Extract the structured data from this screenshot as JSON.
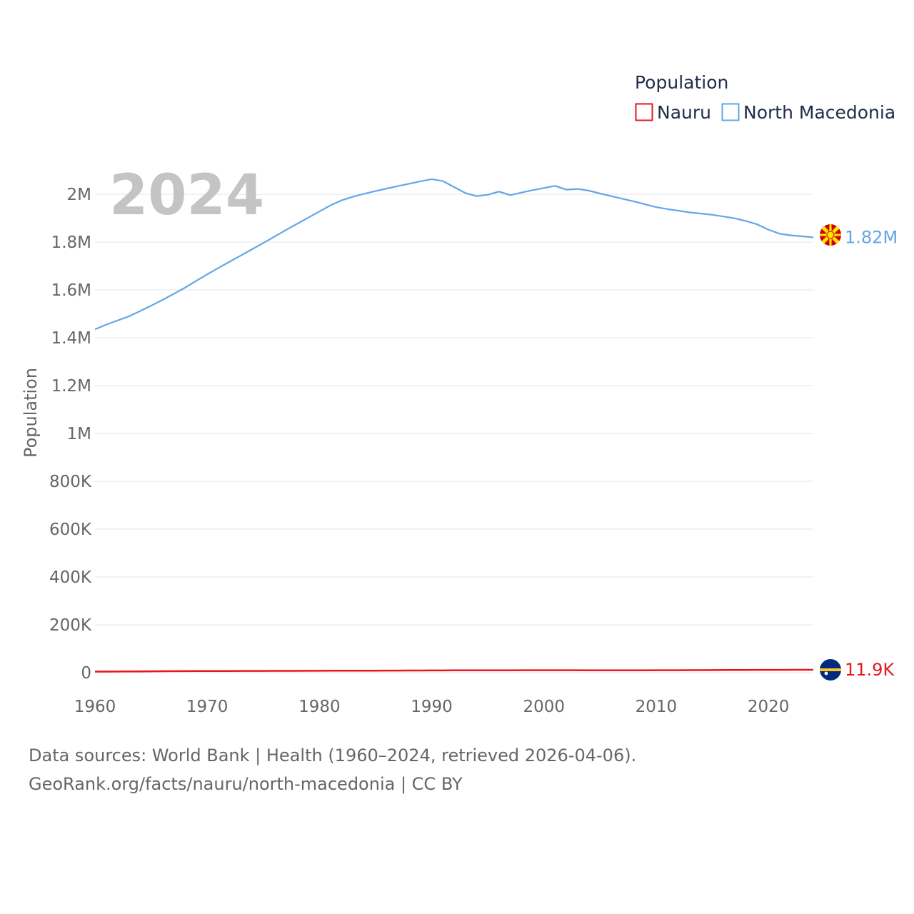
{
  "chart_data": {
    "type": "line",
    "x": [
      1960,
      1961,
      1962,
      1963,
      1964,
      1965,
      1966,
      1967,
      1968,
      1969,
      1970,
      1971,
      1972,
      1973,
      1974,
      1975,
      1976,
      1977,
      1978,
      1979,
      1980,
      1981,
      1982,
      1983,
      1984,
      1985,
      1986,
      1987,
      1988,
      1989,
      1990,
      1991,
      1992,
      1993,
      1994,
      1995,
      1996,
      1997,
      1998,
      1999,
      2000,
      2001,
      2002,
      2003,
      2004,
      2005,
      2006,
      2007,
      2008,
      2009,
      2010,
      2011,
      2012,
      2013,
      2014,
      2015,
      2016,
      2017,
      2018,
      2019,
      2020,
      2021,
      2022,
      2023,
      2024
    ],
    "series": [
      {
        "name": "Nauru",
        "color": "#e8161d",
        "end_label": "11.9K",
        "values": [
          4400,
          4600,
          4800,
          5000,
          5300,
          5600,
          5900,
          6200,
          6400,
          6600,
          6800,
          6900,
          7000,
          7100,
          7200,
          7300,
          7400,
          7500,
          7600,
          7700,
          7800,
          8000,
          8100,
          8200,
          8300,
          8500,
          8600,
          8800,
          8900,
          9100,
          9300,
          9400,
          9500,
          9700,
          9800,
          9800,
          9900,
          9900,
          10000,
          10000,
          10100,
          10100,
          10100,
          10000,
          9900,
          9900,
          9900,
          9800,
          9800,
          9900,
          10000,
          10100,
          10200,
          10300,
          10500,
          10800,
          11000,
          11200,
          11300,
          11600,
          11700,
          11700,
          11800,
          11900,
          11900
        ]
      },
      {
        "name": "North Macedonia",
        "color": "#63a6e6",
        "end_label": "1.82M",
        "values": [
          1435000,
          1455000,
          1472000,
          1489000,
          1511000,
          1534000,
          1558000,
          1583000,
          1609000,
          1637000,
          1665000,
          1692000,
          1718000,
          1744000,
          1770000,
          1796000,
          1823000,
          1850000,
          1876000,
          1902000,
          1928000,
          1954000,
          1975000,
          1990000,
          2002000,
          2013000,
          2024000,
          2034000,
          2044000,
          2054000,
          2063000,
          2055000,
          2030000,
          2005000,
          1992000,
          1998000,
          2011000,
          1996000,
          2007000,
          2017000,
          2026000,
          2035000,
          2019000,
          2022000,
          2015000,
          2003000,
          1992000,
          1981000,
          1970000,
          1958000,
          1946000,
          1938000,
          1931000,
          1924000,
          1919000,
          1914000,
          1907000,
          1899000,
          1888000,
          1874000,
          1852000,
          1835000,
          1828000,
          1824000,
          1820000
        ]
      }
    ],
    "title": "",
    "xlabel": "",
    "ylabel": "Population",
    "ylim": [
      0,
      2100000
    ],
    "xlim": [
      1960,
      2024
    ],
    "x_ticks": [
      1960,
      1970,
      1980,
      1990,
      2000,
      2010,
      2020
    ],
    "x_tick_labels": [
      "1960",
      "1970",
      "1980",
      "1990",
      "2000",
      "2010",
      "2020"
    ],
    "y_ticks": [
      0,
      200000,
      400000,
      600000,
      800000,
      1000000,
      1200000,
      1400000,
      1600000,
      1800000,
      2000000
    ],
    "y_tick_labels": [
      "0",
      "200K",
      "400K",
      "600K",
      "800K",
      "1M",
      "1.2M",
      "1.4M",
      "1.6M",
      "1.8M",
      "2M"
    ],
    "year_label": "2024",
    "legend_title": "Population",
    "legend_position": "top-right",
    "grid": true
  },
  "icons": {
    "nauru_flag": "nauru-flag-icon",
    "north_macedonia_flag": "north-macedonia-flag-icon"
  },
  "colors": {
    "grid": "#e6e6e6",
    "axis_text": "#666666",
    "year_label": "#c4c4c4",
    "legend_text": "#1f2d4a"
  },
  "footer": {
    "line1": "Data sources: World Bank | Health (1960–2024, retrieved 2026-04-06).",
    "line2": "GeoRank.org/facts/nauru/north-macedonia | CC BY"
  }
}
